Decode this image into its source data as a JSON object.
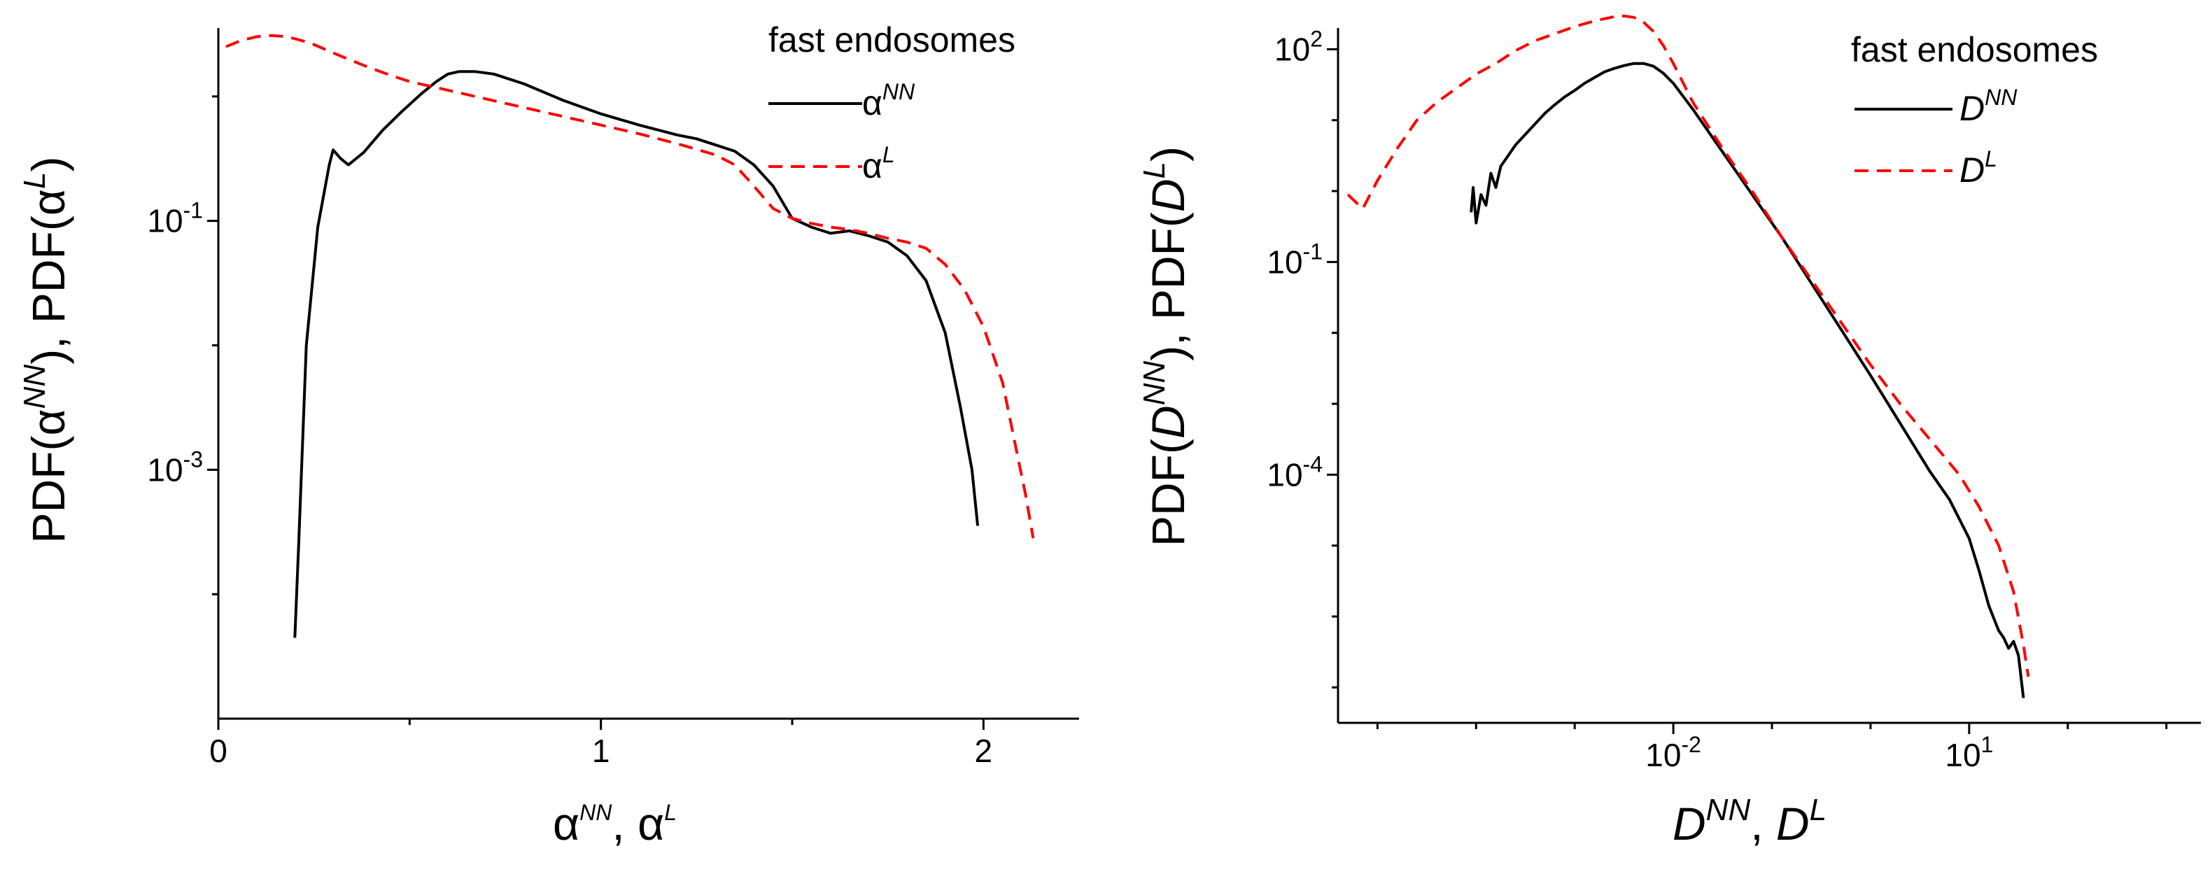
{
  "figure": {
    "background": "#ffffff"
  },
  "chart_data": [
    {
      "type": "line",
      "panel": "left",
      "x_scale": "linear",
      "y_scale": "log",
      "xlim": [
        0,
        2.25
      ],
      "ylim_log10": [
        -5.0,
        0.55
      ],
      "xlabel": {
        "base1": "α",
        "sup1": "NN",
        "sep": ", ",
        "base2": "α",
        "sup2": "L"
      },
      "ylabel": {
        "text": "PDF(α",
        "sup1": "NN",
        "mid": "), PDF(α",
        "sup2": "L",
        "end": ")"
      },
      "x_ticks": [
        {
          "value": 0,
          "label": "0"
        },
        {
          "value": 1,
          "label": "1"
        },
        {
          "value": 2,
          "label": "2"
        }
      ],
      "x_minor_ticks": [
        0.5,
        1.5
      ],
      "y_ticks": [
        {
          "log": -1,
          "base": "10",
          "exp": "-1"
        },
        {
          "log": -3,
          "base": "10",
          "exp": "-3"
        }
      ],
      "y_minor_ticks_log": [
        0,
        -2,
        -4
      ],
      "legend": {
        "title": "fast endosomes",
        "position": "top-right",
        "entries": [
          {
            "base": "α",
            "sup": "NN",
            "italic": false
          },
          {
            "base": "α",
            "sup": "L",
            "italic": false
          }
        ]
      },
      "series": [
        {
          "name": "αNN",
          "color": "#000000",
          "dash": "solid",
          "points": [
            [
              0.2,
              -4.35
            ],
            [
              0.21,
              -3.6
            ],
            [
              0.23,
              -2.0
            ],
            [
              0.26,
              -1.05
            ],
            [
              0.29,
              -0.55
            ],
            [
              0.3,
              -0.43
            ],
            [
              0.32,
              -0.5
            ],
            [
              0.34,
              -0.55
            ],
            [
              0.38,
              -0.45
            ],
            [
              0.43,
              -0.27
            ],
            [
              0.48,
              -0.12
            ],
            [
              0.53,
              0.02
            ],
            [
              0.57,
              0.12
            ],
            [
              0.6,
              0.18
            ],
            [
              0.63,
              0.2
            ],
            [
              0.67,
              0.2
            ],
            [
              0.72,
              0.18
            ],
            [
              0.8,
              0.1
            ],
            [
              0.9,
              -0.03
            ],
            [
              1.0,
              -0.14
            ],
            [
              1.1,
              -0.23
            ],
            [
              1.2,
              -0.31
            ],
            [
              1.25,
              -0.34
            ],
            [
              1.3,
              -0.39
            ],
            [
              1.35,
              -0.44
            ],
            [
              1.4,
              -0.55
            ],
            [
              1.45,
              -0.72
            ],
            [
              1.5,
              -0.98
            ],
            [
              1.55,
              -1.05
            ],
            [
              1.6,
              -1.1
            ],
            [
              1.65,
              -1.08
            ],
            [
              1.7,
              -1.12
            ],
            [
              1.75,
              -1.17
            ],
            [
              1.8,
              -1.28
            ],
            [
              1.85,
              -1.48
            ],
            [
              1.9,
              -1.9
            ],
            [
              1.94,
              -2.5
            ],
            [
              1.97,
              -3.0
            ],
            [
              1.985,
              -3.45
            ]
          ]
        },
        {
          "name": "αL",
          "color": "#ff0000",
          "dash": "dashed",
          "points": [
            [
              0.02,
              0.4
            ],
            [
              0.06,
              0.45
            ],
            [
              0.1,
              0.48
            ],
            [
              0.14,
              0.49
            ],
            [
              0.18,
              0.48
            ],
            [
              0.24,
              0.43
            ],
            [
              0.3,
              0.35
            ],
            [
              0.38,
              0.25
            ],
            [
              0.45,
              0.17
            ],
            [
              0.5,
              0.12
            ],
            [
              0.6,
              0.05
            ],
            [
              0.7,
              -0.02
            ],
            [
              0.8,
              -0.09
            ],
            [
              0.9,
              -0.16
            ],
            [
              1.0,
              -0.23
            ],
            [
              1.1,
              -0.3
            ],
            [
              1.2,
              -0.38
            ],
            [
              1.3,
              -0.47
            ],
            [
              1.35,
              -0.55
            ],
            [
              1.4,
              -0.72
            ],
            [
              1.45,
              -0.9
            ],
            [
              1.5,
              -0.98
            ],
            [
              1.55,
              -1.02
            ],
            [
              1.6,
              -1.05
            ],
            [
              1.65,
              -1.07
            ],
            [
              1.7,
              -1.1
            ],
            [
              1.75,
              -1.14
            ],
            [
              1.8,
              -1.17
            ],
            [
              1.85,
              -1.22
            ],
            [
              1.9,
              -1.35
            ],
            [
              1.95,
              -1.55
            ],
            [
              2.0,
              -1.85
            ],
            [
              2.05,
              -2.3
            ],
            [
              2.09,
              -2.9
            ],
            [
              2.11,
              -3.2
            ],
            [
              2.13,
              -3.55
            ]
          ]
        }
      ]
    },
    {
      "type": "line",
      "panel": "right",
      "x_scale": "log",
      "y_scale": "log",
      "xlim_log10": [
        -5.4,
        3.35
      ],
      "ylim_log10": [
        -7.5,
        2.3
      ],
      "xlabel": {
        "base1": "D",
        "sup1": "NN",
        "sep": ", ",
        "base2": "D",
        "sup2": "L"
      },
      "ylabel": {
        "text": "PDF(",
        "base1": "D",
        "sup1": "NN",
        "mid": "), PDF(",
        "base2": "D",
        "sup2": "L",
        "end": ")"
      },
      "x_ticks": [
        {
          "log": -2,
          "base": "10",
          "exp": "-2"
        },
        {
          "log": 1,
          "base": "10",
          "exp": "1"
        }
      ],
      "x_minor_ticks_log": [
        -5,
        -4,
        -3,
        -1,
        0,
        2,
        3
      ],
      "y_ticks": [
        {
          "log": 2,
          "base": "10",
          "exp": "2"
        },
        {
          "log": -1,
          "base": "10",
          "exp": "-1"
        },
        {
          "log": -4,
          "base": "10",
          "exp": "-4"
        }
      ],
      "y_minor_ticks_log": [
        1,
        0,
        -2,
        -3,
        -5,
        -6,
        -7
      ],
      "legend": {
        "title": "fast endosomes",
        "position": "top-right",
        "entries": [
          {
            "base": "D",
            "sup": "NN",
            "italic": true
          },
          {
            "base": "D",
            "sup": "L",
            "italic": true
          }
        ]
      },
      "series": [
        {
          "name": "DNN",
          "color": "#000000",
          "dash": "solid",
          "points": [
            [
              -4.05,
              -0.3
            ],
            [
              -4.03,
              0.05
            ],
            [
              -4.0,
              -0.45
            ],
            [
              -3.95,
              -0.05
            ],
            [
              -3.9,
              -0.2
            ],
            [
              -3.85,
              0.25
            ],
            [
              -3.8,
              0.05
            ],
            [
              -3.75,
              0.35
            ],
            [
              -3.7,
              0.45
            ],
            [
              -3.6,
              0.65
            ],
            [
              -3.5,
              0.8
            ],
            [
              -3.4,
              0.95
            ],
            [
              -3.3,
              1.1
            ],
            [
              -3.2,
              1.22
            ],
            [
              -3.1,
              1.33
            ],
            [
              -3.0,
              1.42
            ],
            [
              -2.9,
              1.52
            ],
            [
              -2.8,
              1.6
            ],
            [
              -2.7,
              1.68
            ],
            [
              -2.6,
              1.73
            ],
            [
              -2.5,
              1.77
            ],
            [
              -2.4,
              1.8
            ],
            [
              -2.3,
              1.8
            ],
            [
              -2.2,
              1.76
            ],
            [
              -2.1,
              1.66
            ],
            [
              -2.0,
              1.52
            ],
            [
              -1.8,
              1.15
            ],
            [
              -1.5,
              0.55
            ],
            [
              -1.2,
              -0.05
            ],
            [
              -0.9,
              -0.65
            ],
            [
              -0.6,
              -1.3
            ],
            [
              -0.3,
              -1.95
            ],
            [
              0.0,
              -2.6
            ],
            [
              0.2,
              -3.05
            ],
            [
              0.4,
              -3.5
            ],
            [
              0.6,
              -3.95
            ],
            [
              0.8,
              -4.35
            ],
            [
              1.0,
              -4.9
            ],
            [
              1.1,
              -5.35
            ],
            [
              1.2,
              -5.85
            ],
            [
              1.3,
              -6.2
            ],
            [
              1.35,
              -6.3
            ],
            [
              1.4,
              -6.45
            ],
            [
              1.45,
              -6.35
            ],
            [
              1.5,
              -6.55
            ],
            [
              1.55,
              -7.15
            ]
          ]
        },
        {
          "name": "DL",
          "color": "#ff0000",
          "dash": "dashed",
          "points": [
            [
              -5.3,
              -0.05
            ],
            [
              -5.15,
              -0.25
            ],
            [
              -5.0,
              0.15
            ],
            [
              -4.8,
              0.6
            ],
            [
              -4.6,
              1.0
            ],
            [
              -4.4,
              1.25
            ],
            [
              -4.2,
              1.45
            ],
            [
              -4.0,
              1.65
            ],
            [
              -3.8,
              1.8
            ],
            [
              -3.6,
              1.98
            ],
            [
              -3.4,
              2.12
            ],
            [
              -3.2,
              2.22
            ],
            [
              -3.0,
              2.32
            ],
            [
              -2.8,
              2.4
            ],
            [
              -2.6,
              2.46
            ],
            [
              -2.5,
              2.47
            ],
            [
              -2.4,
              2.45
            ],
            [
              -2.3,
              2.38
            ],
            [
              -2.2,
              2.25
            ],
            [
              -2.1,
              2.05
            ],
            [
              -2.0,
              1.8
            ],
            [
              -1.8,
              1.25
            ],
            [
              -1.5,
              0.6
            ],
            [
              -1.2,
              0.0
            ],
            [
              -0.9,
              -0.65
            ],
            [
              -0.6,
              -1.25
            ],
            [
              -0.3,
              -1.85
            ],
            [
              0.0,
              -2.45
            ],
            [
              0.3,
              -3.0
            ],
            [
              0.6,
              -3.5
            ],
            [
              0.9,
              -4.0
            ],
            [
              1.1,
              -4.45
            ],
            [
              1.3,
              -5.0
            ],
            [
              1.45,
              -5.65
            ],
            [
              1.55,
              -6.4
            ],
            [
              1.6,
              -6.85
            ]
          ]
        }
      ]
    }
  ]
}
